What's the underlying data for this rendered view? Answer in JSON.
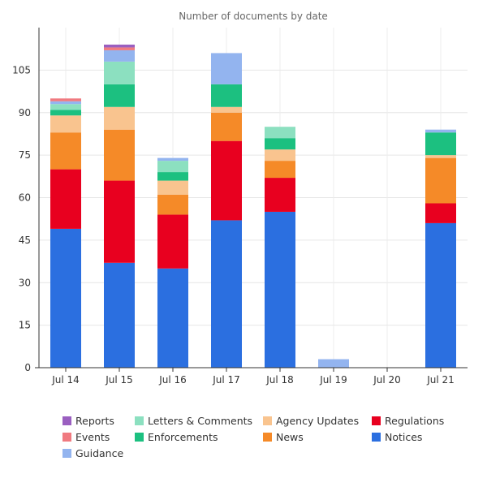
{
  "chart_data": {
    "type": "bar",
    "stacked": true,
    "title": "Number of documents by date",
    "xlabel": "",
    "ylabel": "",
    "categories": [
      "Jul 14",
      "Jul 15",
      "Jul 16",
      "Jul 17",
      "Jul 18",
      "Jul 19",
      "Jul 20",
      "Jul 21"
    ],
    "ylim": [
      0,
      120
    ],
    "yticks": [
      0,
      15,
      30,
      45,
      60,
      75,
      90,
      105
    ],
    "grid": true,
    "legend_position": "bottom",
    "series": [
      {
        "name": "Notices",
        "color": "#2b6fe0",
        "values": [
          49,
          37,
          35,
          52,
          55,
          0,
          0,
          51
        ]
      },
      {
        "name": "Regulations",
        "color": "#e8001f",
        "values": [
          21,
          29,
          19,
          28,
          12,
          0,
          0,
          7
        ]
      },
      {
        "name": "News",
        "color": "#f58a28",
        "values": [
          13,
          18,
          7,
          10,
          6,
          0,
          0,
          16
        ]
      },
      {
        "name": "Agency Updates",
        "color": "#f9c48f",
        "values": [
          6,
          8,
          5,
          2,
          4,
          0,
          0,
          1
        ]
      },
      {
        "name": "Enforcements",
        "color": "#1cc080",
        "values": [
          2,
          8,
          3,
          8,
          4,
          0,
          0,
          8
        ]
      },
      {
        "name": "Letters & Comments",
        "color": "#8ce0c0",
        "values": [
          2,
          8,
          4,
          0,
          4,
          0,
          0,
          0
        ]
      },
      {
        "name": "Guidance",
        "color": "#93b4ef",
        "values": [
          1,
          4,
          1,
          11,
          0,
          3,
          0,
          1
        ]
      },
      {
        "name": "Events",
        "color": "#f07a80",
        "values": [
          1,
          1,
          0,
          0,
          0,
          0,
          0,
          0
        ]
      },
      {
        "name": "Reports",
        "color": "#9a5fc0",
        "values": [
          0,
          1,
          0,
          0,
          0,
          0,
          0,
          0
        ]
      }
    ],
    "legend_order": [
      "Reports",
      "Letters & Comments",
      "Agency Updates",
      "Regulations",
      "Events",
      "Enforcements",
      "News",
      "Notices",
      "Guidance"
    ]
  }
}
